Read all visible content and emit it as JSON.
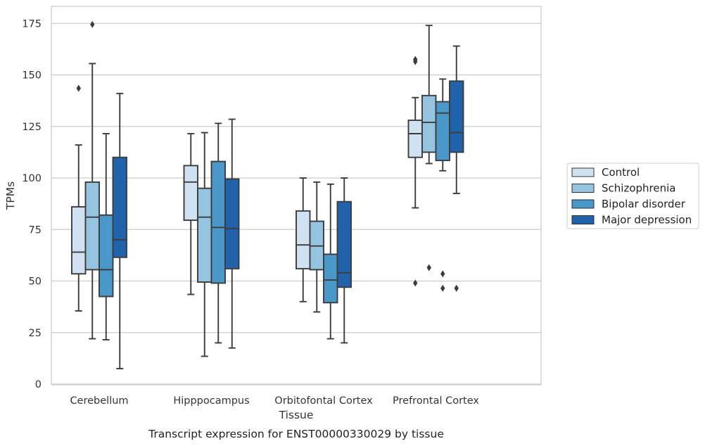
{
  "chart_data": {
    "type": "boxplot",
    "xlabel": "Tissue",
    "ylabel": "TPMs",
    "caption": "Transcript expression for ENST00000330029 by tissue",
    "categories": [
      "Cerebellum",
      "Hipppocampus",
      "Orbitofontal Cortex",
      "Prefrontal Cortex"
    ],
    "ylim": [
      0,
      183
    ],
    "yticks": [
      0,
      25,
      50,
      75,
      100,
      125,
      150,
      175
    ],
    "grid": "horizontal",
    "legend_position": "right",
    "series": [
      {
        "name": "Control",
        "color": "#d0e1f2",
        "boxes": [
          {
            "whisker_low": 35.5,
            "q1": 53.5,
            "median": 64.0,
            "q3": 86.0,
            "whisker_high": 116.0,
            "outliers": [
              143.5
            ]
          },
          {
            "whisker_low": 43.5,
            "q1": 79.5,
            "median": 98.0,
            "q3": 106.0,
            "whisker_high": 121.5,
            "outliers": []
          },
          {
            "whisker_low": 40.0,
            "q1": 56.0,
            "median": 67.5,
            "q3": 84.0,
            "whisker_high": 100.0,
            "outliers": []
          },
          {
            "whisker_low": 85.5,
            "q1": 110.0,
            "median": 121.5,
            "q3": 128.0,
            "whisker_high": 139.0,
            "outliers": [
              157.5,
              156.5,
              49.0
            ]
          }
        ]
      },
      {
        "name": "Schizophrenia",
        "color": "#94c4df",
        "boxes": [
          {
            "whisker_low": 22.0,
            "q1": 55.5,
            "median": 81.0,
            "q3": 98.0,
            "whisker_high": 155.5,
            "outliers": [
              174.5
            ]
          },
          {
            "whisker_low": 13.5,
            "q1": 49.5,
            "median": 81.0,
            "q3": 95.0,
            "whisker_high": 122.0,
            "outliers": []
          },
          {
            "whisker_low": 35.0,
            "q1": 55.5,
            "median": 67.0,
            "q3": 79.0,
            "whisker_high": 98.0,
            "outliers": []
          },
          {
            "whisker_low": 107.0,
            "q1": 112.5,
            "median": 127.0,
            "q3": 140.0,
            "whisker_high": 174.0,
            "outliers": [
              56.5
            ]
          }
        ]
      },
      {
        "name": "Bipolar disorder",
        "color": "#4a98c9",
        "boxes": [
          {
            "whisker_low": 21.5,
            "q1": 42.5,
            "median": 55.5,
            "q3": 82.0,
            "whisker_high": 121.5,
            "outliers": []
          },
          {
            "whisker_low": 20.0,
            "q1": 49.0,
            "median": 76.0,
            "q3": 108.0,
            "whisker_high": 126.5,
            "outliers": []
          },
          {
            "whisker_low": 22.0,
            "q1": 39.5,
            "median": 50.5,
            "q3": 63.0,
            "whisker_high": 97.0,
            "outliers": []
          },
          {
            "whisker_low": 103.5,
            "q1": 108.5,
            "median": 131.5,
            "q3": 137.0,
            "whisker_high": 148.0,
            "outliers": [
              53.5,
              46.5
            ]
          }
        ]
      },
      {
        "name": "Major depression",
        "color": "#2163aa",
        "boxes": [
          {
            "whisker_low": 7.5,
            "q1": 61.5,
            "median": 70.0,
            "q3": 110.0,
            "whisker_high": 141.0,
            "outliers": []
          },
          {
            "whisker_low": 17.5,
            "q1": 56.0,
            "median": 75.5,
            "q3": 99.5,
            "whisker_high": 128.5,
            "outliers": []
          },
          {
            "whisker_low": 20.0,
            "q1": 47.0,
            "median": 54.0,
            "q3": 88.5,
            "whisker_high": 100.0,
            "outliers": []
          },
          {
            "whisker_low": 92.5,
            "q1": 112.5,
            "median": 122.0,
            "q3": 147.0,
            "whisker_high": 164.0,
            "outliers": [
              46.5
            ]
          }
        ]
      }
    ]
  }
}
